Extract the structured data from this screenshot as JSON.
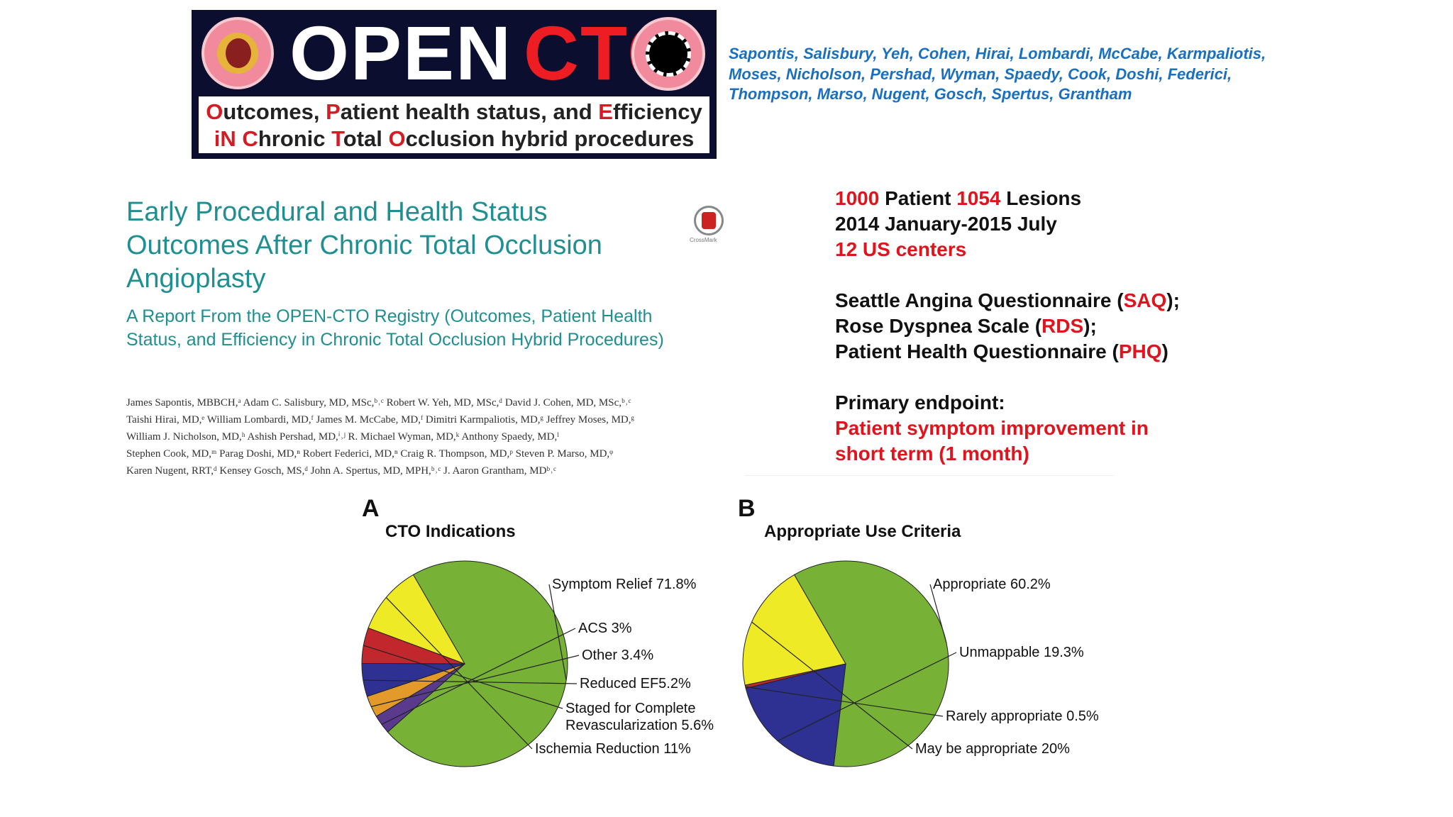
{
  "logo": {
    "word_left": "OPEN",
    "word_right": "CTO",
    "tagline_line1": [
      {
        "text": "O",
        "red": true
      },
      {
        "text": "utcomes, ",
        "red": false
      },
      {
        "text": "P",
        "red": true
      },
      {
        "text": "atient health status, and ",
        "red": false
      },
      {
        "text": "E",
        "red": true
      },
      {
        "text": "fficiency",
        "red": false
      }
    ],
    "tagline_line2": [
      {
        "text": "iN",
        "red": true
      },
      {
        "text": " ",
        "red": false
      },
      {
        "text": "C",
        "red": true
      },
      {
        "text": "hronic ",
        "red": false
      },
      {
        "text": "T",
        "red": true
      },
      {
        "text": "otal ",
        "red": false
      },
      {
        "text": "O",
        "red": true
      },
      {
        "text": "cclusion hybrid procedures",
        "red": false
      }
    ]
  },
  "authors_summary": "Sapontis, Salisbury, Yeh, Cohen, Hirai, Lombardi, McCabe, Karmpaliotis, Moses, Nicholson, Pershad, Wyman, Spaedy, Cook, Doshi, Federici, Thompson, Marso, Nugent, Gosch, Spertus, Grantham",
  "paper": {
    "title": "Early Procedural and Health Status Outcomes After Chronic Total Occlusion Angioplasty",
    "subtitle": "A Report From the OPEN-CTO Registry (Outcomes, Patient Health Status, and Efficiency in Chronic Total Occlusion Hybrid Procedures)",
    "crossmark_label": "CrossMark",
    "author_lines": [
      "James Sapontis, MBBCH,ᵃ Adam C. Salisbury, MD, MSc,ᵇ˒ᶜ Robert W. Yeh, MD, MSc,ᵈ David J. Cohen, MD, MSc,ᵇ˒ᶜ",
      "Taishi Hirai, MD,ᵉ William Lombardi, MD,ᶠ James M. McCabe, MD,ᶠ Dimitri Karmpaliotis, MD,ᵍ Jeffrey Moses, MD,ᵍ",
      "William J. Nicholson, MD,ʰ Ashish Pershad, MD,ⁱ˒ʲ R. Michael Wyman, MD,ᵏ Anthony Spaedy, MD,ˡ",
      "Stephen Cook, MD,ᵐ Parag Doshi, MD,ⁿ Robert Federici, MD,ⁿ Craig R. Thompson, MD,ᵖ Steven P. Marso, MD,ᵠ",
      "Karen Nugent, RRT,ᵈ Kensey Gosch, MS,ᵈ John A. Spertus, MD, MPH,ᵇ˒ᶜ J. Aaron Grantham, MDᵇ˒ᶜ"
    ]
  },
  "study_info": {
    "patients_num": "1000",
    "patients_word": " Patient ",
    "lesions_num": "1054",
    "lesions_word": " Lesions",
    "period": "2014 January-2015 July",
    "centers": "12 US centers",
    "questionnaires": [
      {
        "prefix": "Seattle Angina Questionnaire (",
        "abbr": "SAQ",
        "suffix": ");"
      },
      {
        "prefix": "Rose Dyspnea Scale (",
        "abbr": "RDS",
        "suffix": ");"
      },
      {
        "prefix": "Patient Health Questionnaire (",
        "abbr": "PHQ",
        "suffix": ")"
      }
    ],
    "endpoint_label": "Primary endpoint:",
    "endpoint_line1": "Patient symptom improvement in",
    "endpoint_line2": "short term (1 month)"
  },
  "chart_data": [
    {
      "type": "pie",
      "panel": "A",
      "title": "CTO Indications",
      "slices": [
        {
          "label": "Symptom Relief 71.8%",
          "value": 71.8,
          "color": "#77b136"
        },
        {
          "label": "ACS 3%",
          "value": 3.0,
          "color": "#5a3a8c"
        },
        {
          "label": "Other 3.4%",
          "value": 3.4,
          "color": "#e39a2a"
        },
        {
          "label": "Reduced EF5.2%",
          "value": 5.2,
          "color": "#2e3192"
        },
        {
          "label": "Staged for Complete Revascularization 5.6%",
          "value": 5.6,
          "color": "#c1272d"
        },
        {
          "label": "Ischemia Reduction 11%",
          "value": 11.0,
          "color": "#eeea26"
        }
      ]
    },
    {
      "type": "pie",
      "panel": "B",
      "title": "Appropriate Use Criteria",
      "slices": [
        {
          "label": "Appropriate 60.2%",
          "value": 60.2,
          "color": "#77b136"
        },
        {
          "label": "Unmappable 19.3%",
          "value": 19.3,
          "color": "#2e3192"
        },
        {
          "label": "Rarely appropriate 0.5%",
          "value": 0.5,
          "color": "#c1272d"
        },
        {
          "label": "May be appropriate 20%",
          "value": 20.0,
          "color": "#eeea26"
        }
      ]
    }
  ]
}
